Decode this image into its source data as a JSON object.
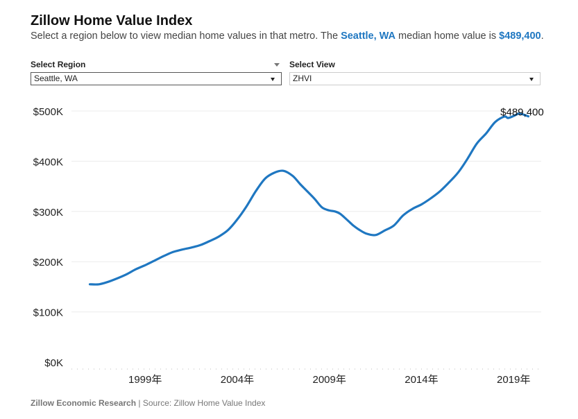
{
  "header": {
    "title": "Zillow Home Value Index",
    "subtitle_pre": "Select a region below to view median home values in that metro. The ",
    "subtitle_region": "Seattle, WA",
    "subtitle_mid": " median home value is ",
    "subtitle_value": "$489,400",
    "subtitle_post": "."
  },
  "controls": {
    "region_label": "Select Region",
    "region_value": "Seattle, WA",
    "view_label": "Select View",
    "view_value": "ZHVI"
  },
  "footer": {
    "org": "Zillow Economic Research",
    "separator": " | ",
    "source": "Source: Zillow Home Value Index"
  },
  "colors": {
    "line": "#1f77c1",
    "accent": "#1f77c1",
    "grid": "#ebebeb"
  },
  "chart_data": {
    "type": "line",
    "title": "",
    "xlabel": "",
    "ylabel": "",
    "ylim": [
      0,
      500000
    ],
    "xlim": [
      1995.0,
      2020.5
    ],
    "y_ticks": [
      {
        "value": 0,
        "label": "$0K"
      },
      {
        "value": 100000,
        "label": "$100K"
      },
      {
        "value": 200000,
        "label": "$200K"
      },
      {
        "value": 300000,
        "label": "$300K"
      },
      {
        "value": 400000,
        "label": "$400K"
      },
      {
        "value": 500000,
        "label": "$500K"
      }
    ],
    "x_ticks": [
      {
        "value": 1999,
        "label": "1999年"
      },
      {
        "value": 2004,
        "label": "2004年"
      },
      {
        "value": 2009,
        "label": "2009年"
      },
      {
        "value": 2014,
        "label": "2014年"
      },
      {
        "value": 2019,
        "label": "2019年"
      }
    ],
    "grid": true,
    "annotation": {
      "x": 2019.5,
      "y": 489400,
      "label": "$489,400"
    },
    "series": [
      {
        "x": [
          1996.0,
          1996.5,
          1997.0,
          1997.5,
          1998.0,
          1998.5,
          1999.0,
          1999.5,
          2000.0,
          2000.5,
          2001.0,
          2001.5,
          2002.0,
          2002.5,
          2003.0,
          2003.5,
          2004.0,
          2004.5,
          2005.0,
          2005.5,
          2006.0,
          2006.5,
          2007.0,
          2007.4,
          2007.8,
          2008.2,
          2008.6,
          2009.0,
          2009.3,
          2009.6,
          2010.0,
          2010.3,
          2010.6,
          2011.0,
          2011.5,
          2012.0,
          2012.5,
          2013.0,
          2013.5,
          2014.0,
          2014.5,
          2015.0,
          2015.5,
          2016.0,
          2016.5,
          2017.0,
          2017.5,
          2018.0,
          2018.5,
          2018.7,
          2019.0,
          2019.3,
          2019.6,
          2019.8
        ],
        "y": [
          155000,
          155000,
          160000,
          167000,
          175000,
          185000,
          193000,
          202000,
          211000,
          219000,
          224000,
          228000,
          233000,
          241000,
          250000,
          263000,
          284000,
          310000,
          340000,
          365000,
          377000,
          381000,
          371000,
          355000,
          340000,
          325000,
          308000,
          302000,
          300000,
          295000,
          282000,
          272000,
          264000,
          256000,
          253000,
          262000,
          272000,
          292000,
          305000,
          314000,
          326000,
          340000,
          358000,
          378000,
          405000,
          435000,
          455000,
          478000,
          489000,
          486000,
          490000,
          495000,
          492000,
          489400
        ]
      }
    ]
  }
}
